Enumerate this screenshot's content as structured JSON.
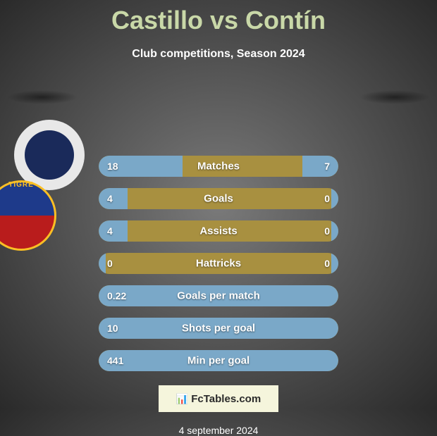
{
  "title": "Castillo vs Contín",
  "subtitle": "Club competitions, Season 2024",
  "date": "4 september 2024",
  "fctables_label": "FcTables.com",
  "badge_right_text": "TIGRE",
  "bars": [
    {
      "label": "Matches",
      "left_val": "18",
      "right_val": "7",
      "left_pct": 35,
      "right_pct": 15
    },
    {
      "label": "Goals",
      "left_val": "4",
      "right_val": "0",
      "left_pct": 12,
      "right_pct": 3
    },
    {
      "label": "Assists",
      "left_val": "4",
      "right_val": "0",
      "left_pct": 12,
      "right_pct": 3
    },
    {
      "label": "Hattricks",
      "left_val": "0",
      "right_val": "0",
      "left_pct": 3,
      "right_pct": 3
    },
    {
      "label": "Goals per match",
      "left_val": "0.22",
      "right_val": "",
      "left_pct": 100,
      "right_pct": 0
    },
    {
      "label": "Shots per goal",
      "left_val": "10",
      "right_val": "",
      "left_pct": 100,
      "right_pct": 0
    },
    {
      "label": "Min per goal",
      "left_val": "441",
      "right_val": "",
      "left_pct": 100,
      "right_pct": 0
    }
  ],
  "colors": {
    "title": "#c9d8a8",
    "bar_bg": "#a89040",
    "bar_fill": "#7aa8c8",
    "panel_bg": "#f5f5dc"
  }
}
